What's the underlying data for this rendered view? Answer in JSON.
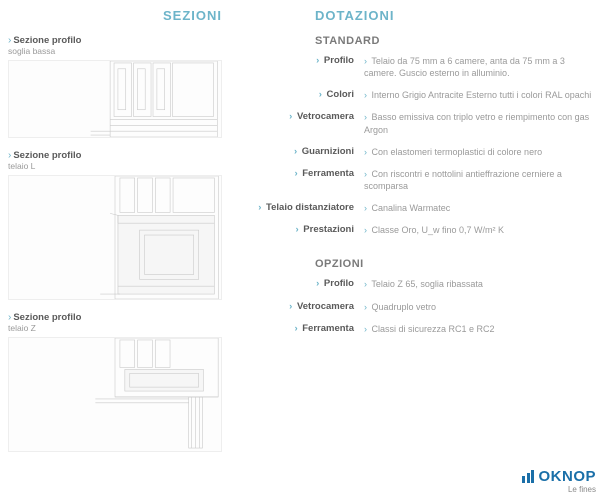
{
  "headers": {
    "sezioni": "SEZIONI",
    "dotazioni": "DOTAZIONI",
    "standard": "STANDARD",
    "opzioni": "OPZIONI"
  },
  "colors": {
    "accent": "#6db4c9",
    "label": "#5a5a5a",
    "value": "#9a9a9a",
    "brand": "#1a6fa8"
  },
  "sections": [
    {
      "title": "Sezione profilo",
      "sub": "soglia bassa"
    },
    {
      "title": "Sezione profilo",
      "sub": "telaio L"
    },
    {
      "title": "Sezione profilo",
      "sub": "telaio Z"
    }
  ],
  "standard": [
    {
      "label": "Profilo",
      "value": "Telaio da 75 mm a 6 camere, anta da 75 mm a 3 camere. Guscio esterno in alluminio."
    },
    {
      "label": "Colori",
      "value": "Interno Grigio Antracite Esterno tutti i colori RAL opachi"
    },
    {
      "label": "Vetrocamera",
      "value": "Basso emissiva con triplo vetro e riempimento con gas Argon"
    },
    {
      "label": "Guarnizioni",
      "value": "Con elastomeri termoplastici di colore nero"
    },
    {
      "label": "Ferramenta",
      "value": "Con riscontri e nottolini antieffrazione cerniere a scomparsa"
    },
    {
      "label": "Telaio distanziatore",
      "value": "Canalina Warmatec"
    },
    {
      "label": "Prestazioni",
      "value": "Classe Oro,  U_w fino 0,7 W/m² K"
    }
  ],
  "opzioni": [
    {
      "label": "Profilo",
      "value": "Telaio Z 65, soglia ribassata"
    },
    {
      "label": "Vetrocamera",
      "value": "Quadruplo vetro"
    },
    {
      "label": "Ferramenta",
      "value": "Classi di sicurezza RC1 e RC2"
    }
  ],
  "brand": {
    "name": "OKNOP",
    "tagline": "Le fines"
  }
}
